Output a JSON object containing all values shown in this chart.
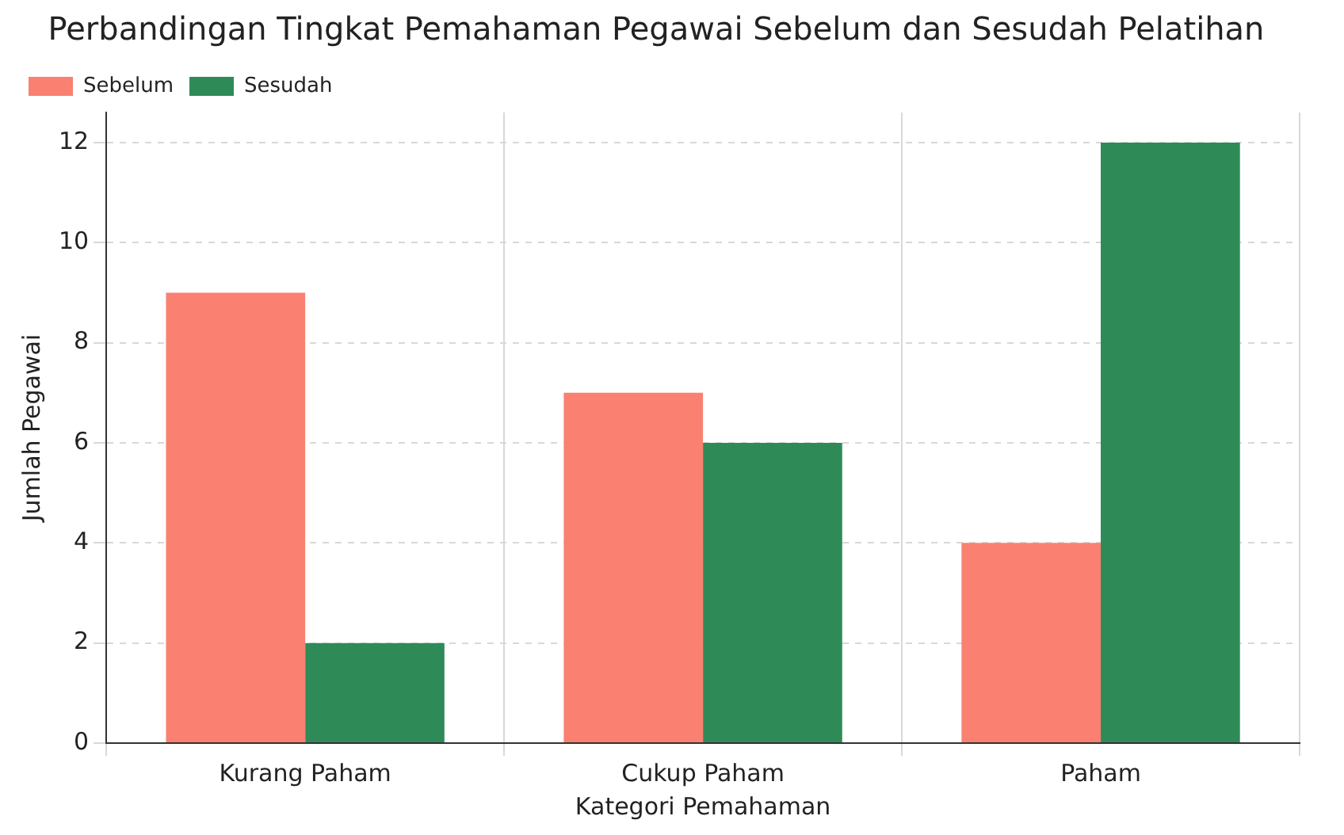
{
  "chart_data": {
    "type": "bar",
    "title": "Perbandingan Tingkat Pemahaman Pegawai Sebelum dan Sesudah Pelatihan",
    "xlabel": "Kategori Pemahaman",
    "ylabel": "Jumlah Pegawai",
    "categories": [
      "Kurang Paham",
      "Cukup Paham",
      "Paham"
    ],
    "series": [
      {
        "name": "Sebelum",
        "color": "#fa8072",
        "values": [
          9,
          7,
          4
        ]
      },
      {
        "name": "Sesudah",
        "color": "#2e8b57",
        "values": [
          2,
          6,
          12
        ]
      }
    ],
    "ylim": [
      0,
      12.6
    ],
    "yticks": [
      0,
      2,
      4,
      6,
      8,
      10,
      12
    ],
    "grid": true,
    "legend": "top left"
  }
}
